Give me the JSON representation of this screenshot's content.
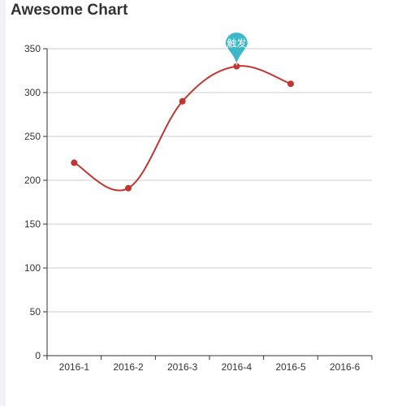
{
  "chart_data": {
    "type": "line",
    "title": "Awesome Chart",
    "categories": [
      "2016-1",
      "2016-2",
      "2016-3",
      "2016-4",
      "2016-5",
      "2016-6"
    ],
    "series": [
      {
        "values": [
          220,
          191,
          290,
          330,
          310,
          null
        ]
      }
    ],
    "ylim": [
      0,
      350
    ],
    "yticks": [
      0,
      50,
      100,
      150,
      200,
      250,
      300,
      350
    ],
    "grid": true,
    "smooth": true,
    "line_color": "#c23531",
    "marker_point": {
      "label": "触发",
      "category": "2016-4",
      "value": 330,
      "color": "#3db8c9"
    }
  }
}
